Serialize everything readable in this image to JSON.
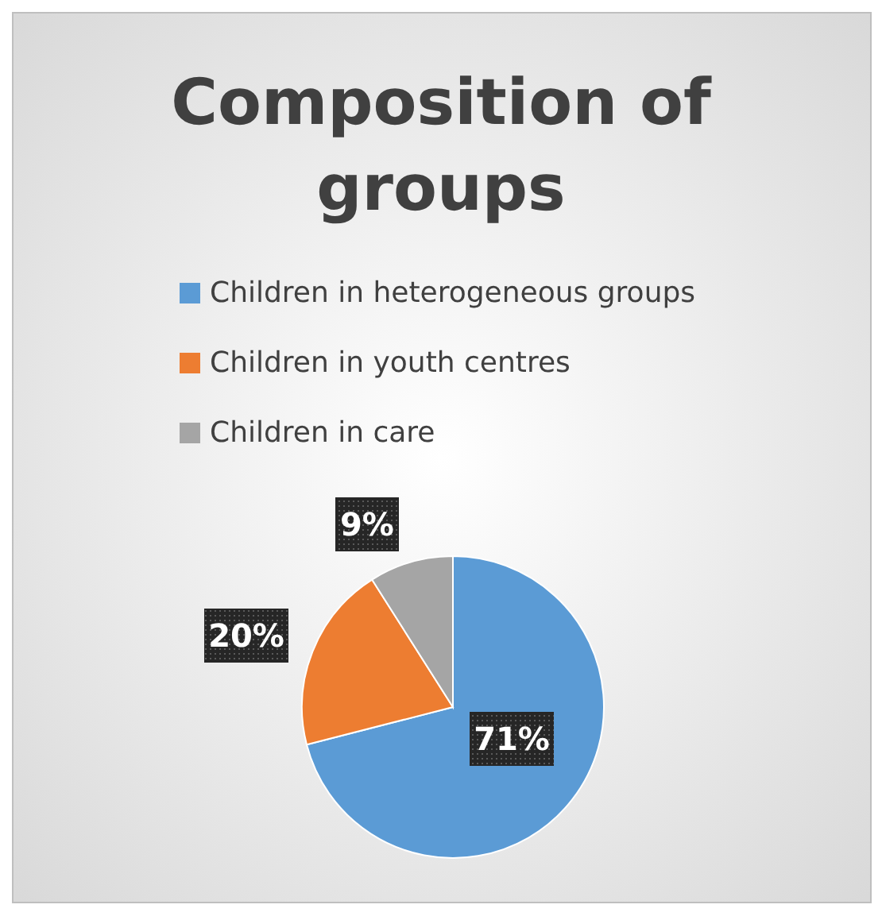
{
  "chart_data": {
    "type": "pie",
    "title": "Composition of groups",
    "categories": [
      "Children in heterogeneous groups",
      "Children in youth centres",
      "Children in care"
    ],
    "values": [
      71,
      20,
      9
    ],
    "colors": [
      "#5b9bd5",
      "#ed7d31",
      "#a5a5a5"
    ],
    "value_labels": [
      "71%",
      "20%",
      "9%"
    ],
    "legend": "top"
  }
}
